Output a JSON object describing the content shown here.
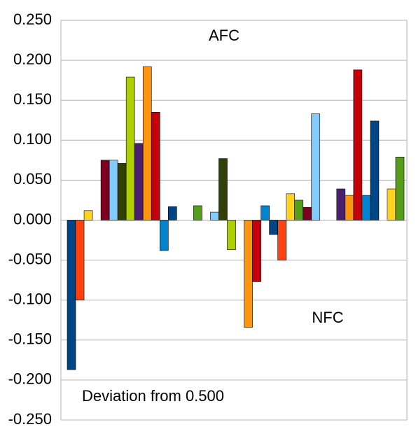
{
  "chart_data": {
    "type": "bar",
    "annotations": [
      "AFC",
      "NFC",
      "Deviation from 0.500"
    ],
    "values": [
      -0.187,
      -0.1,
      0.012,
      null,
      0.075,
      0.075,
      0.071,
      0.179,
      0.096,
      0.192,
      0.135,
      -0.038,
      0.017,
      null,
      null,
      0.018,
      null,
      0.01,
      0.077,
      -0.037,
      null,
      -0.134,
      -0.077,
      0.018,
      -0.018,
      -0.05,
      0.033,
      0.025,
      0.016,
      0.133,
      null,
      null,
      0.039,
      0.031,
      0.188,
      0.031,
      0.124,
      null,
      0.039,
      0.079
    ],
    "colors": [
      "#004586",
      "#ff420e",
      "#ffd320",
      "#579d1c",
      "#7e0021",
      "#83caff",
      "#314004",
      "#aecf00",
      "#4b1f6f",
      "#ff950e",
      "#c5000b",
      "#0084d1"
    ],
    "ylim": [
      -0.25,
      0.25
    ],
    "yticks": [
      {
        "value": -0.25,
        "label": "-0.250"
      },
      {
        "value": -0.2,
        "label": "-0.200"
      },
      {
        "value": -0.15,
        "label": "-0.150"
      },
      {
        "value": -0.1,
        "label": "-0.100"
      },
      {
        "value": -0.05,
        "label": "-0.050"
      },
      {
        "value": 0,
        "label": "0.000"
      },
      {
        "value": 0.05,
        "label": "0.050"
      },
      {
        "value": 0.1,
        "label": "0.100"
      },
      {
        "value": 0.15,
        "label": "0.150"
      },
      {
        "value": 0.2,
        "label": "0.200"
      },
      {
        "value": 0.25,
        "label": "0.250"
      }
    ],
    "grid": true
  }
}
